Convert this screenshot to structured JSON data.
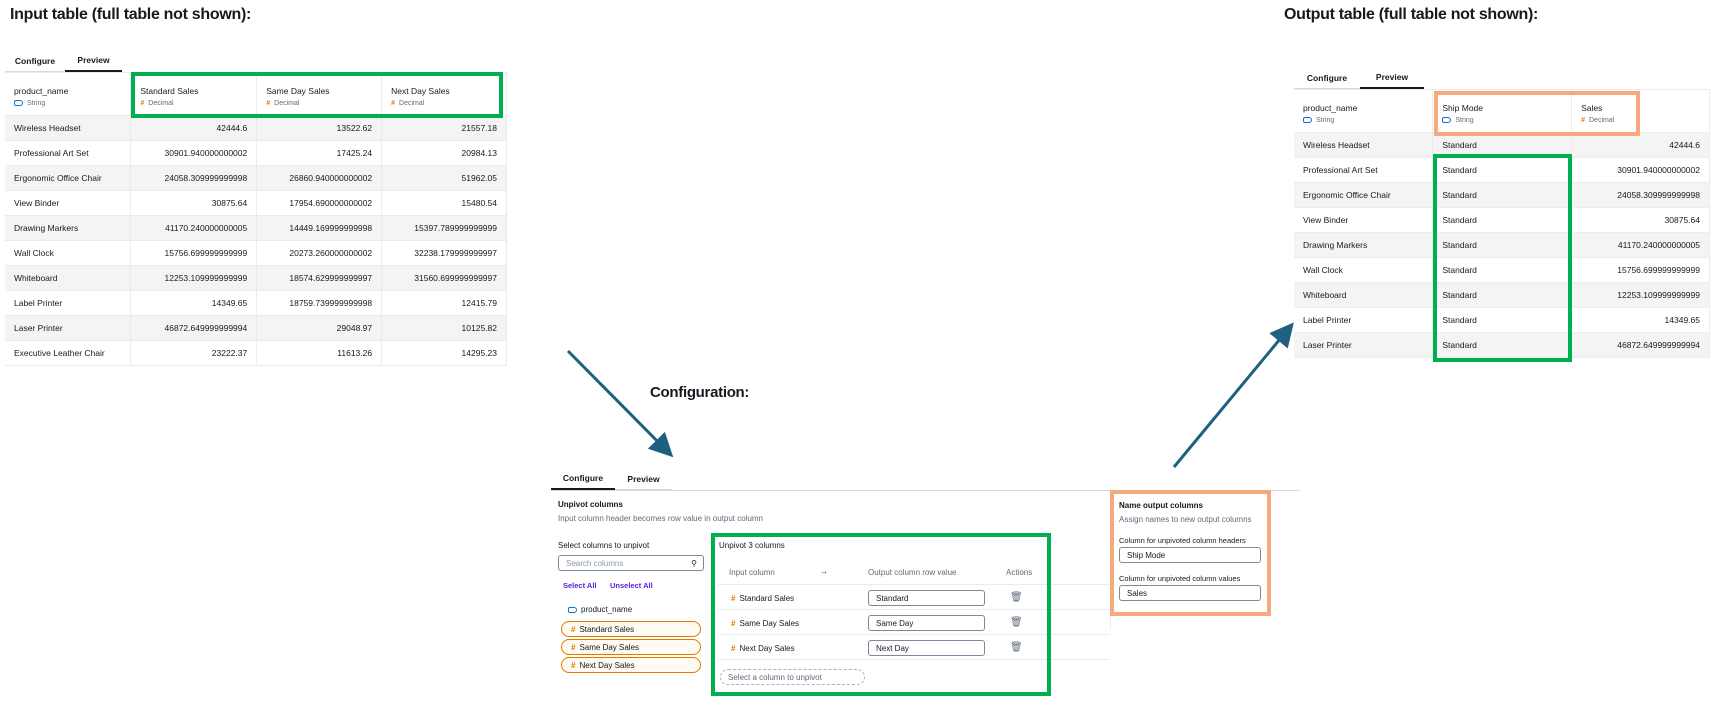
{
  "labels": {
    "input_title": "Input table (full table not shown):",
    "output_title": "Output table (full table not shown):",
    "config_title": "Configuration:"
  },
  "tabs": {
    "configure": "Configure",
    "preview": "Preview"
  },
  "input_table": {
    "columns": [
      {
        "name": "product_name",
        "type": "String",
        "icon": "string-icon"
      },
      {
        "name": "Standard Sales",
        "type": "Decimal",
        "icon": "hash-icon"
      },
      {
        "name": "Same Day Sales",
        "type": "Decimal",
        "icon": "hash-icon"
      },
      {
        "name": "Next Day Sales",
        "type": "Decimal",
        "icon": "hash-icon"
      }
    ],
    "rows": [
      [
        "Wireless Headset",
        "42444.6",
        "13522.62",
        "21557.18"
      ],
      [
        "Professional Art Set",
        "30901.940000000002",
        "17425.24",
        "20984.13"
      ],
      [
        "Ergonomic Office Chair",
        "24058.309999999998",
        "26860.940000000002",
        "51962.05"
      ],
      [
        "View Binder",
        "30875.64",
        "17954.690000000002",
        "15480.54"
      ],
      [
        "Drawing Markers",
        "41170.240000000005",
        "14449.169999999998",
        "15397.789999999999"
      ],
      [
        "Wall Clock",
        "15756.699999999999",
        "20273.260000000002",
        "32238.179999999997"
      ],
      [
        "Whiteboard",
        "12253.109999999999",
        "18574.629999999997",
        "31560.699999999997"
      ],
      [
        "Label Printer",
        "14349.65",
        "18759.739999999998",
        "12415.79"
      ],
      [
        "Laser Printer",
        "46872.649999999994",
        "29048.97",
        "10125.82"
      ],
      [
        "Executive Leather Chair",
        "23222.37",
        "11613.26",
        "14295.23"
      ]
    ]
  },
  "output_table": {
    "columns": [
      {
        "name": "product_name",
        "type": "String",
        "icon": "string-icon"
      },
      {
        "name": "Ship Mode",
        "type": "String",
        "icon": "string-icon"
      },
      {
        "name": "Sales",
        "type": "Decimal",
        "icon": "hash-icon"
      }
    ],
    "rows": [
      [
        "Wireless Headset",
        "Standard",
        "42444.6"
      ],
      [
        "Professional Art Set",
        "Standard",
        "30901.940000000002"
      ],
      [
        "Ergonomic Office Chair",
        "Standard",
        "24058.309999999998"
      ],
      [
        "View Binder",
        "Standard",
        "30875.64"
      ],
      [
        "Drawing Markers",
        "Standard",
        "41170.240000000005"
      ],
      [
        "Wall Clock",
        "Standard",
        "15756.699999999999"
      ],
      [
        "Whiteboard",
        "Standard",
        "12253.109999999999"
      ],
      [
        "Label Printer",
        "Standard",
        "14349.65"
      ],
      [
        "Laser Printer",
        "Standard",
        "46872.649999999994"
      ]
    ]
  },
  "config": {
    "heading": "Unpivot columns",
    "subheading": "Input column header becomes row value in output column",
    "select_label": "Select columns to unpivot",
    "search_placeholder": "Search columns",
    "select_all": "Select All",
    "unselect_all": "Unselect All",
    "column_list": [
      {
        "name": "product_name",
        "selected": false
      },
      {
        "name": "Standard Sales",
        "selected": true
      },
      {
        "name": "Same Day Sales",
        "selected": true
      },
      {
        "name": "Next Day Sales",
        "selected": true
      }
    ],
    "unpivot_title": "Unpivot 3 columns",
    "headers": {
      "input": "Input column",
      "arrow": "→",
      "output": "Output column row value",
      "actions": "Actions"
    },
    "mappings": [
      {
        "input": "Standard Sales",
        "output": "Standard"
      },
      {
        "input": "Same Day Sales",
        "output": "Same Day"
      },
      {
        "input": "Next Day Sales",
        "output": "Next Day"
      }
    ],
    "add_placeholder": "Select a column to unpivot",
    "name_output": {
      "heading": "Name output columns",
      "subheading": "Assign names to new output columns",
      "headers_label": "Column for unpivoted column headers",
      "headers_value": "Ship Mode",
      "values_label": "Column for unpivoted column values",
      "values_value": "Sales"
    }
  },
  "colors": {
    "highlight_green": "#00b050",
    "highlight_orange": "#f4a97f",
    "arrow": "#1f5f80",
    "decimal_icon": "#e07b00",
    "link": "#5a1fe0"
  }
}
